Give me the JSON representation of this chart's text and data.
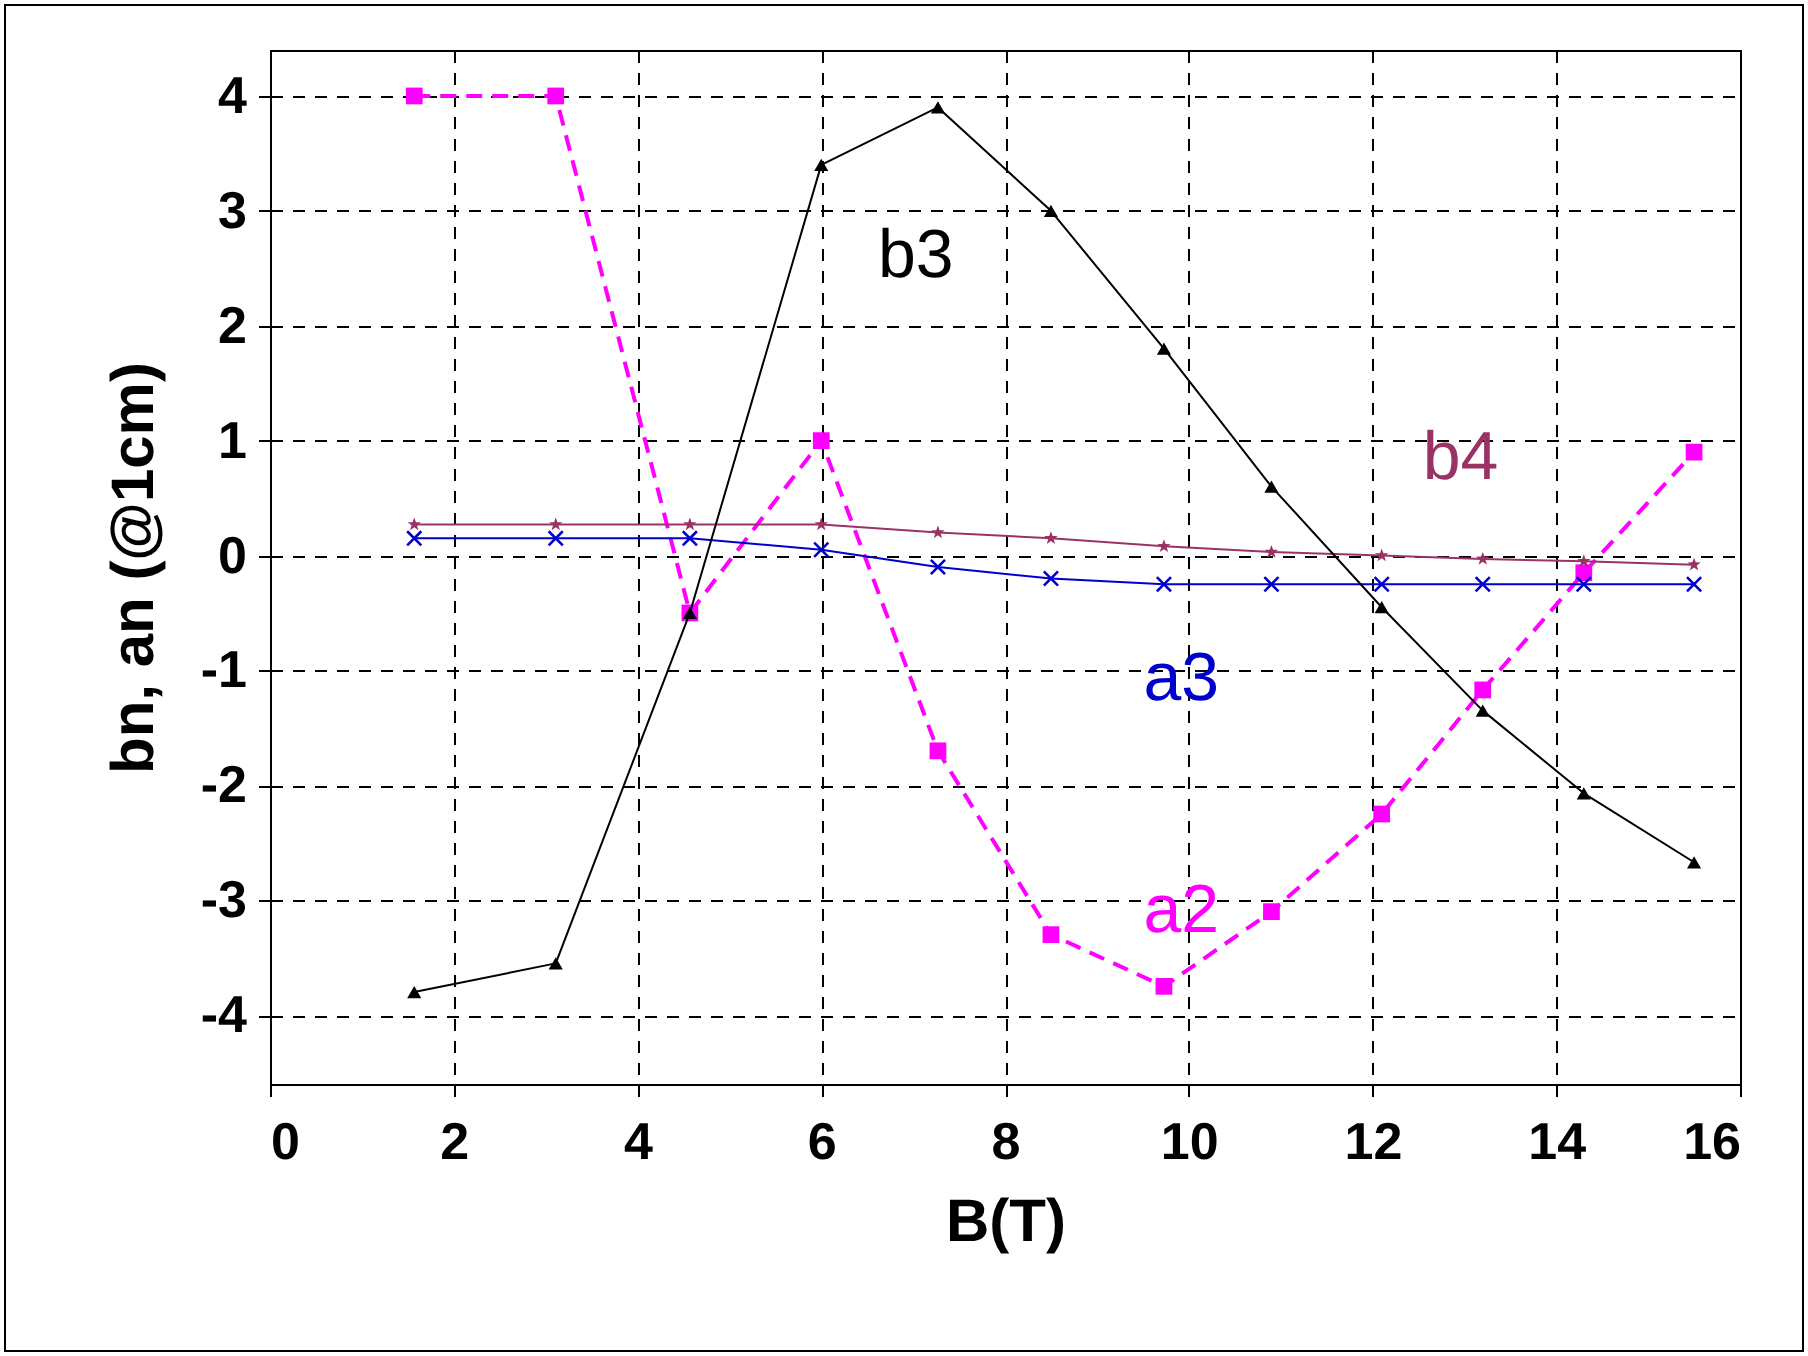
{
  "chart_data": {
    "type": "line",
    "xlabel": "B(T)",
    "ylabel": "bn, an (@1cm)",
    "x": [
      1.57,
      3.11,
      4.57,
      6.0,
      7.27,
      8.5,
      9.73,
      10.9,
      12.1,
      13.2,
      14.3,
      15.5
    ],
    "series": [
      {
        "name": "b3",
        "color": "#000000",
        "marker": "triangle",
        "line_style": "solid",
        "values": [
          -3.8,
          -3.55,
          -0.5,
          3.4,
          3.9,
          3.0,
          1.8,
          0.6,
          -0.45,
          -1.35,
          -2.07,
          -2.67
        ]
      },
      {
        "name": "b4",
        "color": "#993366",
        "marker": "star",
        "line_style": "solid",
        "values": [
          0.27,
          0.27,
          0.27,
          0.27,
          0.2,
          0.15,
          0.08,
          0.03,
          0.0,
          -0.03,
          -0.05,
          -0.08
        ]
      },
      {
        "name": "a3",
        "color": "#0000cc",
        "marker": "cross",
        "line_style": "solid",
        "values": [
          0.15,
          0.15,
          0.15,
          0.05,
          -0.1,
          -0.2,
          -0.25,
          -0.25,
          -0.25,
          -0.25,
          -0.25,
          -0.25
        ]
      },
      {
        "name": "a2",
        "color": "#ff00ff",
        "marker": "square",
        "line_style": "dashed",
        "values": [
          4.0,
          4.0,
          -0.5,
          1.0,
          -1.7,
          -3.3,
          -3.75,
          -3.1,
          -2.25,
          -1.17,
          -0.15,
          0.9
        ]
      }
    ],
    "xlim": [
      0,
      16
    ],
    "xticks": [
      0,
      2,
      4,
      6,
      8,
      10,
      12,
      14,
      16
    ],
    "ylim": [
      -4.6,
      4.4
    ],
    "yticks": [
      -4,
      -3,
      -2,
      -1,
      0,
      1,
      2,
      3,
      4
    ],
    "grid": true
  }
}
